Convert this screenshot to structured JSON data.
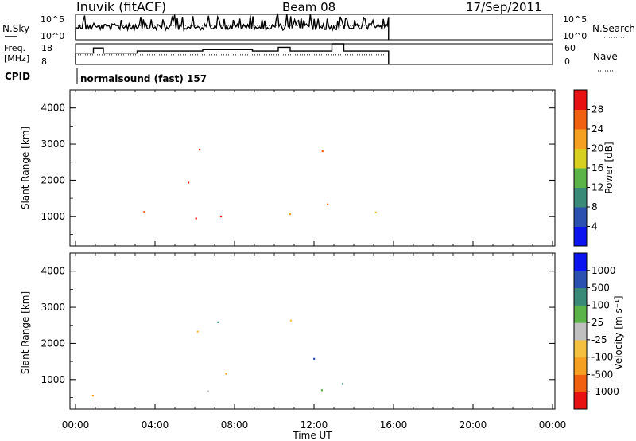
{
  "header": {
    "title": "Inuvik (fitACF)",
    "beam": "Beam 08",
    "date": "17/Sep/2011"
  },
  "noise_panel": {
    "left_label": "N.Sky",
    "right_label": "N.Search",
    "left_ticks": [
      "10^5",
      "10^0"
    ],
    "right_ticks": [
      "10^5",
      "10^0"
    ]
  },
  "freq_panel": {
    "left_label_line1": "Freq.",
    "left_label_line2": "[MHz]",
    "right_label": "Nave",
    "left_ticks": [
      "18",
      "8"
    ],
    "right_ticks": [
      "60",
      "0"
    ]
  },
  "cpid": {
    "label": "CPID",
    "program": "normalsound (fast) 157"
  },
  "x_axis": {
    "label": "Time UT",
    "ticks": [
      "00:00",
      "04:00",
      "08:00",
      "12:00",
      "16:00",
      "20:00",
      "00:00"
    ]
  },
  "power_panel": {
    "ylabel": "Slant Range [km]",
    "yticks": [
      "1000",
      "2000",
      "3000",
      "4000"
    ],
    "colorbar_label": "Power [dB]",
    "colorbar_ticks": [
      "4",
      "8",
      "12",
      "16",
      "20",
      "24",
      "28"
    ],
    "colors": [
      "#0a14f0",
      "#2a50b0",
      "#3a8a78",
      "#5ab448",
      "#d8d020",
      "#f5a020",
      "#f06010",
      "#e81010"
    ]
  },
  "velocity_panel": {
    "ylabel": "Slant Range [km]",
    "yticks": [
      "1000",
      "2000",
      "3000",
      "4000"
    ],
    "colorbar_label": "Velocity [m s⁻¹]",
    "colorbar_ticks": [
      "-1000",
      "-500",
      "-100",
      "-25",
      "25",
      "100",
      "500",
      "1000"
    ],
    "colors": [
      "#e81010",
      "#f06010",
      "#f5a020",
      "#f5c040",
      "#c0c0c0",
      "#5ab448",
      "#3a8a78",
      "#2a50b0",
      "#0a14f0"
    ]
  },
  "chart_data": {
    "type": "heatmap",
    "x_range_hours": [
      0,
      24
    ],
    "y_range_km": [
      180,
      4500
    ],
    "data_end_hour": 15.75,
    "power_db_range": [
      0,
      32
    ],
    "velocity_range": [
      -1000,
      1000
    ],
    "nave_ylim": [
      0,
      60
    ],
    "freq_ylim_mhz": [
      8,
      18
    ],
    "grid": false
  }
}
